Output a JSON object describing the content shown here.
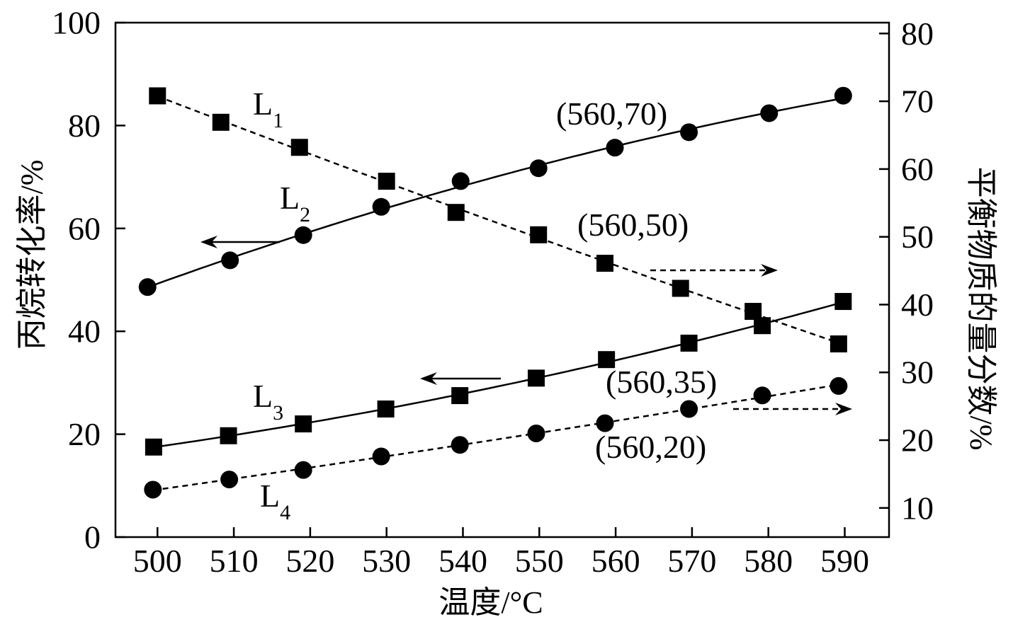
{
  "chart_data": {
    "type": "line",
    "xlabel": "温度/°C",
    "ylabel_left": "丙烷转化率/%",
    "ylabel_right": "平衡物质的量分数/%",
    "xlim": [
      494.5,
      595.8
    ],
    "ylim_left": [
      0,
      100
    ],
    "ylim_right": [
      5.7,
      81.6
    ],
    "x_ticks": [
      "500",
      "510",
      "520",
      "530",
      "540",
      "550",
      "560",
      "570",
      "580",
      "590"
    ],
    "y_left_ticks": [
      "0",
      "20",
      "40",
      "60",
      "80",
      "100"
    ],
    "y_right_ticks": [
      "10",
      "20",
      "30",
      "40",
      "50",
      "60",
      "70",
      "80"
    ],
    "grid": false,
    "legend": "none",
    "series": [
      {
        "label": {
          "main": "L",
          "sub": "1"
        },
        "axis": "right",
        "marker": "square",
        "line": "dashed",
        "color": "#000000",
        "x": [
          500.0,
          508.3,
          518.6,
          530.0,
          539.1,
          549.9,
          558.6,
          568.5,
          578.0,
          589.2
        ],
        "y": [
          70.8,
          66.9,
          63.2,
          58.2,
          53.6,
          50.3,
          46.1,
          42.4,
          39.0,
          34.2
        ]
      },
      {
        "label": {
          "main": "L",
          "sub": "2"
        },
        "axis": "left",
        "marker": "circle",
        "line": "solid",
        "color": "#000000",
        "x": [
          498.7,
          509.5,
          519.1,
          529.3,
          539.7,
          549.9,
          559.9,
          569.6,
          580.1,
          589.8
        ],
        "y": [
          48.6,
          53.8,
          58.7,
          64.2,
          69.2,
          71.7,
          75.7,
          78.7,
          82.4,
          85.8
        ]
      },
      {
        "label": {
          "main": "L",
          "sub": "3"
        },
        "axis": "left",
        "marker": "square",
        "line": "solid",
        "color": "#000000",
        "x": [
          499.5,
          509.3,
          519.1,
          529.9,
          539.6,
          549.6,
          558.8,
          569.6,
          579.2,
          589.8
        ],
        "y": [
          17.5,
          19.7,
          22.0,
          24.9,
          27.5,
          30.9,
          34.5,
          37.7,
          41.1,
          45.8
        ]
      },
      {
        "label": {
          "main": "L",
          "sub": "4"
        },
        "axis": "right",
        "marker": "circle",
        "line": "dashed",
        "color": "#000000",
        "x": [
          499.4,
          509.4,
          519.1,
          529.3,
          539.6,
          549.6,
          558.6,
          569.6,
          579.2,
          589.2
        ],
        "y": [
          12.7,
          14.2,
          15.6,
          17.6,
          19.3,
          21.0,
          22.5,
          24.6,
          26.6,
          28.0
        ]
      }
    ],
    "annotations": [
      "(560,70)",
      "(560,50)",
      "(560,35)",
      "(560,20)"
    ]
  }
}
